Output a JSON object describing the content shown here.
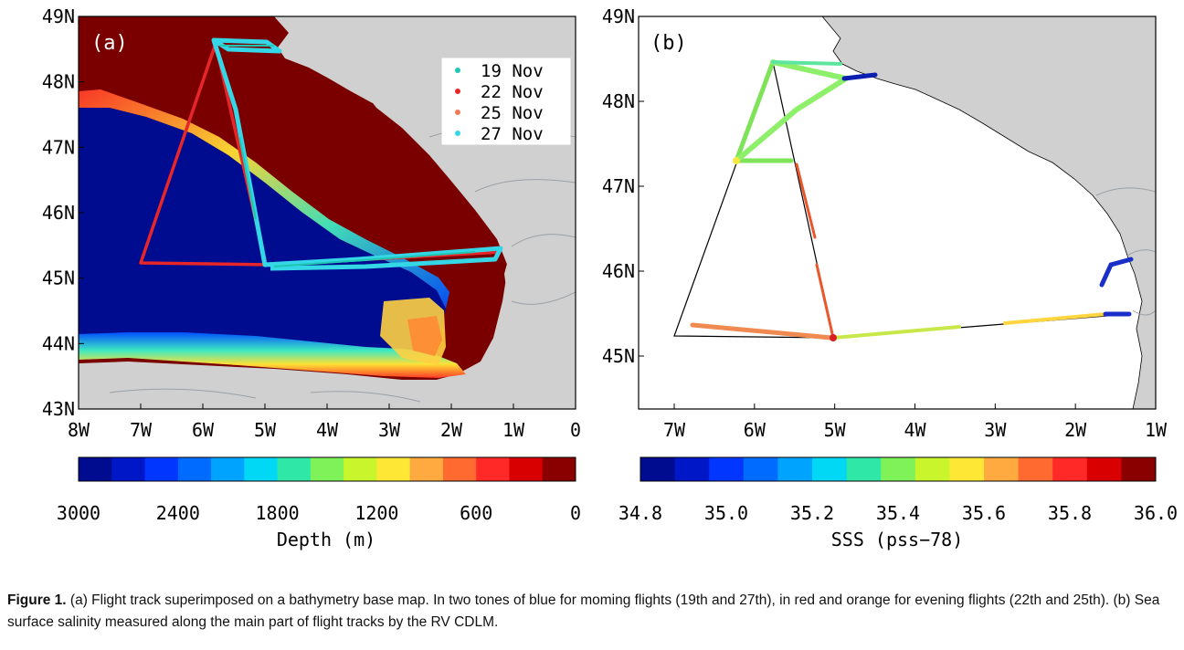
{
  "panels": [
    {
      "label": "(a)",
      "lat_ticks": [
        "49N",
        "48N",
        "47N",
        "46N",
        "45N",
        "44N",
        "43N"
      ],
      "lon_ticks": [
        "8W",
        "7W",
        "6W",
        "5W",
        "4W",
        "3W",
        "2W",
        "1W",
        "0"
      ],
      "legend": [
        {
          "text": "19 Nov",
          "color": "#1fc6b2"
        },
        {
          "text": "22 Nov",
          "color": "#e8262a"
        },
        {
          "text": "25 Nov",
          "color": "#f07a55"
        },
        {
          "text": "27 Nov",
          "color": "#35d6e6"
        }
      ],
      "colorbar": {
        "ticks": [
          "3000",
          "2400",
          "1800",
          "1200",
          "600",
          "0"
        ],
        "title": "Depth (m)"
      }
    },
    {
      "label": "(b)",
      "lat_ticks": [
        "49N",
        "48N",
        "47N",
        "46N",
        "45N"
      ],
      "lon_ticks": [
        "7W",
        "6W",
        "5W",
        "4W",
        "3W",
        "2W",
        "1W"
      ],
      "colorbar": {
        "ticks": [
          "34.8",
          "35.0",
          "35.2",
          "35.4",
          "35.6",
          "35.8",
          "36.0"
        ],
        "title": "SSS (pss−78)"
      }
    }
  ],
  "colors": {
    "land": "#d0d0d0",
    "deep_blue": "#000c8f",
    "shelf": "#7a0000",
    "colorbar": [
      "#000c8f",
      "#0017c8",
      "#0036ff",
      "#006cff",
      "#00a4ff",
      "#00d8f5",
      "#2fe8a8",
      "#7ff25a",
      "#c8f52c",
      "#ffe735",
      "#ffaa40",
      "#ff6a30",
      "#ff2a28",
      "#d80000",
      "#8a0000"
    ]
  },
  "caption": {
    "lead": "Figure 1.",
    "text": " (a) Flight track superimposed on a bathymetry base map. In two tones of blue for moming flights (19th and 27th), in red and orange for evening flights (22th and 25th). (b) Sea surface salinity measured along the main part of flight tracks by the RV CDLM."
  }
}
